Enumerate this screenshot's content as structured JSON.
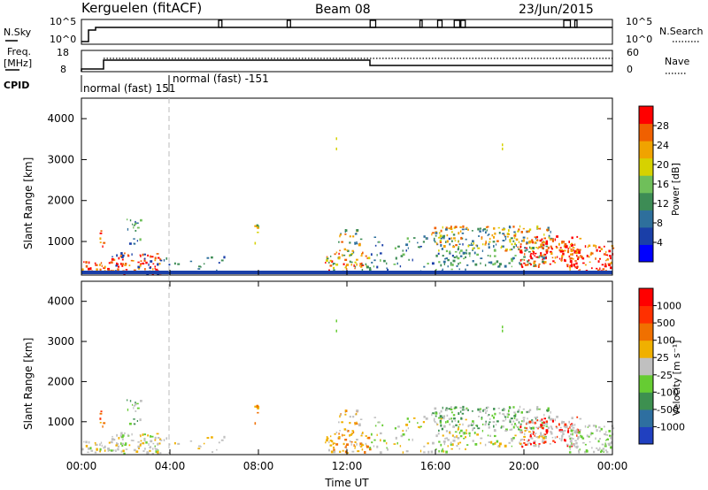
{
  "header": {
    "station": "Kerguelen (fitACF)",
    "beam": "Beam 08",
    "date": "23/Jun/2015"
  },
  "panel_labels": {
    "nsky": "N.Sky",
    "nsearch": "N.Search",
    "freq_line1": "Freq.",
    "freq_line2": "[MHz]",
    "nave": "Nave",
    "cpid": "CPID"
  },
  "small_axes": {
    "nsky_ticks": [
      "10^5",
      "10^0"
    ],
    "nsearch_ticks": [
      "10^5",
      "10^0"
    ],
    "freq_ticks": [
      "18",
      "8"
    ],
    "nave_ticks": [
      "60",
      "0"
    ]
  },
  "cpid_labels": [
    "normal (fast) 151",
    "normal (fast) -151"
  ],
  "chart_data": [
    {
      "type": "heatmap",
      "name": "power",
      "ylabel": "Slant Range [km]",
      "ylim": [
        180,
        4500
      ],
      "yticks": [
        "4000",
        "3000",
        "2000",
        "1000"
      ],
      "colorbar_label": "Power [dB]",
      "colorbar_ticks": [
        "28",
        "24",
        "20",
        "16",
        "12",
        "8",
        "4"
      ],
      "colors": [
        "#0000ff",
        "#1a3fa8",
        "#2e6f9c",
        "#3d8c55",
        "#6fbf5a",
        "#d6d200",
        "#f0a300",
        "#f06000",
        "#ff0000"
      ]
    },
    {
      "type": "heatmap",
      "name": "velocity",
      "ylabel": "Slant Range [km]",
      "ylim": [
        180,
        4500
      ],
      "yticks": [
        "4000",
        "3000",
        "2000",
        "1000"
      ],
      "colorbar_label": "Velocity [m s⁻¹]",
      "colorbar_ticks": [
        "1000",
        "500",
        "100",
        "25",
        "-25",
        "-100",
        "-500",
        "-1000"
      ],
      "colors": [
        "#2040c0",
        "#2e6fa0",
        "#3d9050",
        "#66cc33",
        "#c0c0c0",
        "#f0b000",
        "#f07000",
        "#ff3000",
        "#ff0000"
      ]
    }
  ],
  "xaxis": {
    "label": "Time UT",
    "ticks": [
      "00:00",
      "04:00",
      "08:00",
      "12:00",
      "16:00",
      "20:00",
      "00:00"
    ]
  }
}
